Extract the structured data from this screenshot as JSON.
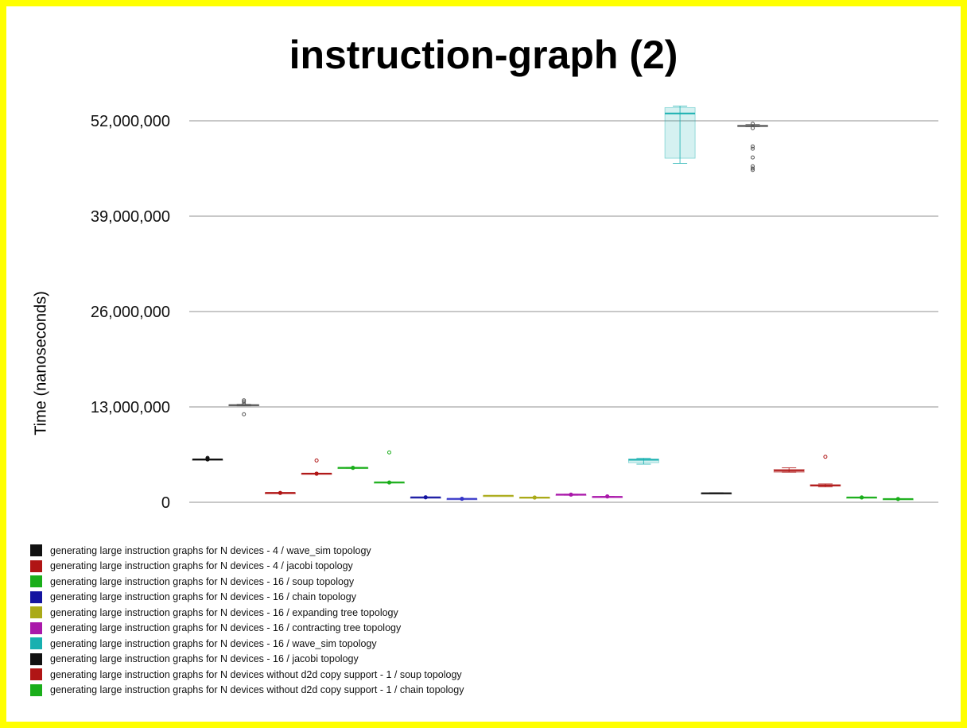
{
  "chart_data": {
    "type": "box",
    "title": "instruction-graph (2)",
    "ylabel": "Time (nanoseconds)",
    "xlabel": "",
    "ylim": [
      0,
      54000000
    ],
    "yticks": [
      {
        "value": 0,
        "label": "0"
      },
      {
        "value": 13000000,
        "label": "13,000,000"
      },
      {
        "value": 26000000,
        "label": "26,000,000"
      },
      {
        "value": 39000000,
        "label": "39,000,000"
      },
      {
        "value": 52000000,
        "label": "52,000,000"
      }
    ],
    "grid": true,
    "legend_position": "bottom-left",
    "legend": [
      {
        "label": "generating large instruction graphs for N devices - 4 / wave_sim topology",
        "color": "#111111"
      },
      {
        "label": "generating large instruction graphs for N devices - 4 / jacobi topology",
        "color": "#b01515"
      },
      {
        "label": "generating large instruction graphs for N devices - 16 / soup topology",
        "color": "#1aae1a"
      },
      {
        "label": "generating large instruction graphs for N devices - 16 / chain topology",
        "color": "#1414a0"
      },
      {
        "label": "generating large instruction graphs for N devices - 16 / expanding tree topology",
        "color": "#aaaa18"
      },
      {
        "label": "generating large instruction graphs for N devices - 16 / contracting tree topology",
        "color": "#aa18aa"
      },
      {
        "label": "generating large instruction graphs for N devices - 16 / wave_sim topology",
        "color": "#18b0b0"
      },
      {
        "label": "generating large instruction graphs for N devices - 16 / jacobi topology",
        "color": "#111111"
      },
      {
        "label": "generating large instruction graphs for N devices without d2d copy support - 1 / soup topology",
        "color": "#b01515"
      },
      {
        "label": "generating large instruction graphs for N devices without d2d copy support - 1 / chain topology",
        "color": "#1aae1a"
      }
    ],
    "series": [
      {
        "color": "#111111",
        "min": 5800000,
        "q1": 5800000,
        "median": 5850000,
        "q3": 5870000,
        "max": 5900000,
        "outliers": [
          6050000,
          5950000
        ],
        "mean": 5850000
      },
      {
        "color": "#555555",
        "min": 13150000,
        "q1": 13150000,
        "median": 13250000,
        "q3": 13300000,
        "max": 13350000,
        "outliers": [
          12000000,
          13400000,
          13700000,
          13900000
        ],
        "mean": null
      },
      {
        "color": "#b01515",
        "min": 1250000,
        "q1": 1250000,
        "median": 1280000,
        "q3": 1300000,
        "max": 1300000,
        "outliers": [],
        "mean": 1280000
      },
      {
        "color": "#b01515",
        "min": 3900000,
        "q1": 3900000,
        "median": 3920000,
        "q3": 3950000,
        "max": 3950000,
        "outliers": [
          5700000
        ],
        "mean": 3900000
      },
      {
        "color": "#1aae1a",
        "min": 4650000,
        "q1": 4650000,
        "median": 4700000,
        "q3": 4750000,
        "max": 4750000,
        "outliers": [],
        "mean": 4700000
      },
      {
        "color": "#1aae1a",
        "min": 2700000,
        "q1": 2700000,
        "median": 2720000,
        "q3": 2750000,
        "max": 2750000,
        "outliers": [
          6800000
        ],
        "mean": 2700000
      },
      {
        "color": "#1414a0",
        "min": 650000,
        "q1": 650000,
        "median": 680000,
        "q3": 700000,
        "max": 700000,
        "outliers": [],
        "mean": 680000
      },
      {
        "color": "#3535c8",
        "min": 450000,
        "q1": 450000,
        "median": 480000,
        "q3": 500000,
        "max": 500000,
        "outliers": [],
        "mean": 480000
      },
      {
        "color": "#aaaa18",
        "min": 870000,
        "q1": 870000,
        "median": 890000,
        "q3": 920000,
        "max": 920000,
        "outliers": [],
        "mean": null
      },
      {
        "color": "#aaaa18",
        "min": 600000,
        "q1": 620000,
        "median": 650000,
        "q3": 680000,
        "max": 700000,
        "outliers": [],
        "mean": 650000
      },
      {
        "color": "#aa18aa",
        "min": 1000000,
        "q1": 1000000,
        "median": 1050000,
        "q3": 1080000,
        "max": 1100000,
        "outliers": [],
        "mean": 1050000
      },
      {
        "color": "#aa18aa",
        "min": 700000,
        "q1": 700000,
        "median": 750000,
        "q3": 780000,
        "max": 800000,
        "outliers": [],
        "mean": 800000
      },
      {
        "color": "#18b0b0",
        "min": 5200000,
        "q1": 5400000,
        "median": 5800000,
        "q3": 5900000,
        "max": 6000000,
        "outliers": [],
        "mean": null
      },
      {
        "color": "#18b0b0",
        "min": 46200000,
        "q1": 46900000,
        "median": 53000000,
        "q3": 53800000,
        "max": 54000000,
        "outliers": [],
        "mean": null
      },
      {
        "color": "#111111",
        "min": 1180000,
        "q1": 1180000,
        "median": 1230000,
        "q3": 1280000,
        "max": 1300000,
        "outliers": [],
        "mean": null
      },
      {
        "color": "#555555",
        "min": 51200000,
        "q1": 51200000,
        "median": 51300000,
        "q3": 51400000,
        "max": 51500000,
        "outliers": [
          51000000,
          51600000,
          48500000,
          48200000,
          47000000,
          45800000,
          45500000,
          45300000
        ],
        "mean": null
      },
      {
        "color": "#b01515",
        "min": 4100000,
        "q1": 4100000,
        "median": 4300000,
        "q3": 4500000,
        "max": 4700000,
        "outliers": [],
        "mean": null
      },
      {
        "color": "#b01515",
        "min": 2100000,
        "q1": 2200000,
        "median": 2300000,
        "q3": 2400000,
        "max": 2500000,
        "outliers": [
          6200000
        ],
        "mean": null
      },
      {
        "color": "#1aae1a",
        "min": 620000,
        "q1": 620000,
        "median": 660000,
        "q3": 700000,
        "max": 700000,
        "outliers": [],
        "mean": 660000
      },
      {
        "color": "#1aae1a",
        "min": 420000,
        "q1": 420000,
        "median": 450000,
        "q3": 480000,
        "max": 480000,
        "outliers": [],
        "mean": 450000
      }
    ]
  }
}
